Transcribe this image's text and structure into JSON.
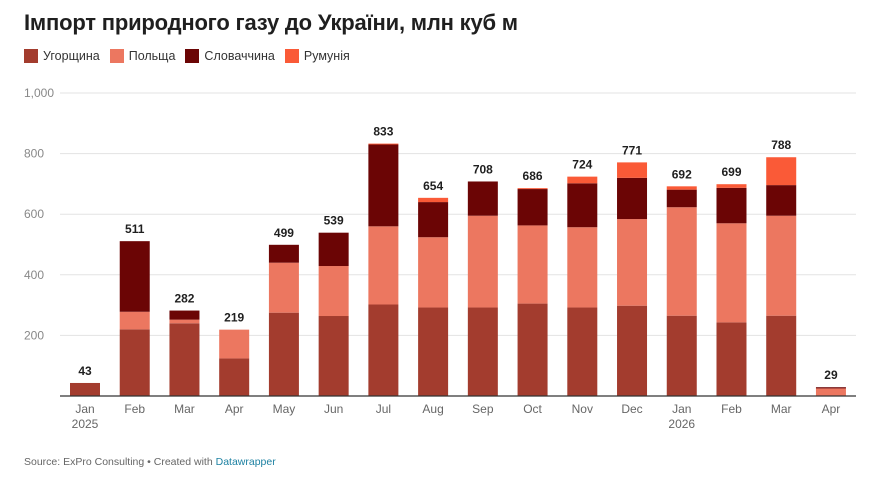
{
  "title": "Імпорт природного газу до України, млн куб м",
  "footer": {
    "source_text": "Source: ExPro Consulting • Created with ",
    "credit_link": "Datawrapper"
  },
  "colors": {
    "Угорщина": "#a33c2e",
    "Польща": "#ec7760",
    "Словаччина": "#6b0505",
    "Румунія": "#fa5a37"
  },
  "chart_data": {
    "type": "bar",
    "stacked": true,
    "categories": [
      "Jan 2025",
      "Feb",
      "Mar",
      "Apr",
      "May",
      "Jun",
      "Jul",
      "Aug",
      "Sep",
      "Oct",
      "Nov",
      "Dec",
      "Jan 2026",
      "Feb",
      "Mar",
      "Apr"
    ],
    "tick_labels": [
      [
        "Jan",
        "2025"
      ],
      [
        "Feb"
      ],
      [
        "Mar"
      ],
      [
        "Apr"
      ],
      [
        "May"
      ],
      [
        "Jun"
      ],
      [
        "Jul"
      ],
      [
        "Aug"
      ],
      [
        "Sep"
      ],
      [
        "Oct"
      ],
      [
        "Nov"
      ],
      [
        "Dec"
      ],
      [
        "Jan",
        "2026"
      ],
      [
        "Feb"
      ],
      [
        "Mar"
      ],
      [
        "Apr"
      ]
    ],
    "series": [
      {
        "name": "Угорщина",
        "values": [
          43,
          220,
          240,
          124,
          275,
          264,
          302,
          292,
          292,
          305,
          292,
          298,
          265,
          243,
          265,
          0
        ]
      },
      {
        "name": "Польща",
        "values": [
          0,
          58,
          12,
          95,
          165,
          165,
          258,
          232,
          303,
          258,
          265,
          286,
          358,
          327,
          330,
          25
        ]
      },
      {
        "name": "Словаччина",
        "values": [
          0,
          233,
          30,
          0,
          59,
          110,
          270,
          116,
          113,
          120,
          145,
          136,
          58,
          117,
          101,
          4
        ]
      },
      {
        "name": "Румунія",
        "values": [
          0,
          0,
          0,
          0,
          0,
          0,
          3,
          14,
          0,
          3,
          22,
          51,
          11,
          12,
          92,
          0
        ]
      }
    ],
    "totals": [
      43,
      511,
      282,
      219,
      499,
      539,
      833,
      654,
      708,
      686,
      724,
      771,
      692,
      699,
      788,
      29
    ],
    "ylim": [
      0,
      1000
    ],
    "yticks": [
      0,
      200,
      400,
      600,
      800,
      1000
    ],
    "ytick_labels": [
      "",
      "200",
      "400",
      "600",
      "800",
      "1,000"
    ],
    "grid": true,
    "legend_position": "top-left"
  }
}
